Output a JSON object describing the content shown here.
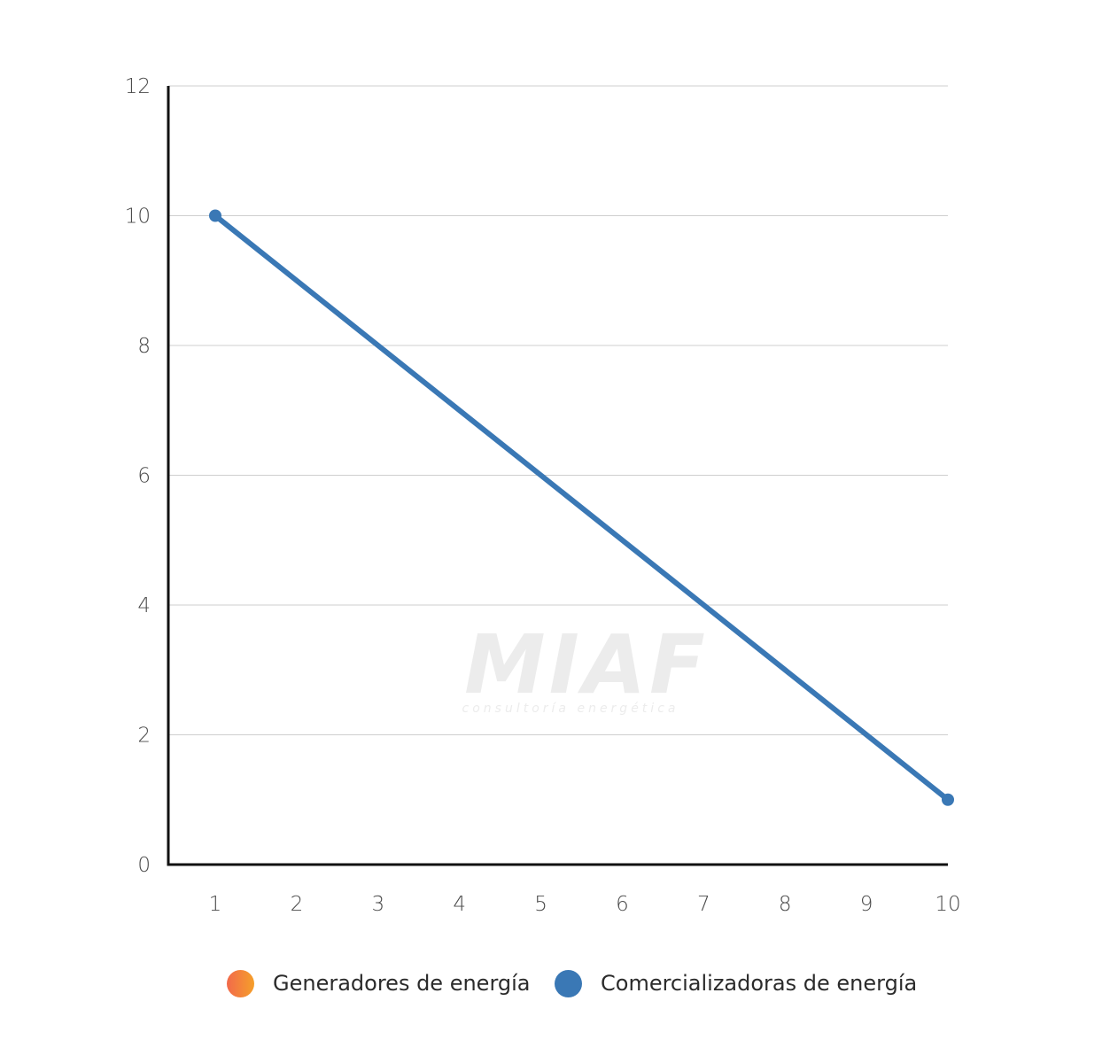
{
  "chart_data": {
    "type": "line",
    "x": [
      1,
      2,
      3,
      4,
      5,
      6,
      7,
      8,
      9,
      10
    ],
    "x_ticks": [
      "1",
      "2",
      "3",
      "4",
      "5",
      "6",
      "7",
      "8",
      "9",
      "10"
    ],
    "y_ticks": [
      "0",
      "2",
      "4",
      "6",
      "8",
      "10",
      "12"
    ],
    "xlim": [
      1,
      10
    ],
    "ylim": [
      0,
      12
    ],
    "grid": true,
    "legend_position": "bottom",
    "series": [
      {
        "name": "Generadores de energía",
        "x": [],
        "values": [],
        "color": "#f0703e",
        "color_gradient": [
          "#f26a4b",
          "#f59f2a"
        ]
      },
      {
        "name": "Comercializadoras de energía",
        "x": [
          1,
          10
        ],
        "values": [
          10,
          1
        ],
        "color": "#3a78b5"
      }
    ]
  },
  "watermark": {
    "brand": "MIAF",
    "tagline": "consultoría energética"
  },
  "colors": {
    "axis": "#111111",
    "grid": "#cfcfcf",
    "watermark": "#ececec"
  }
}
